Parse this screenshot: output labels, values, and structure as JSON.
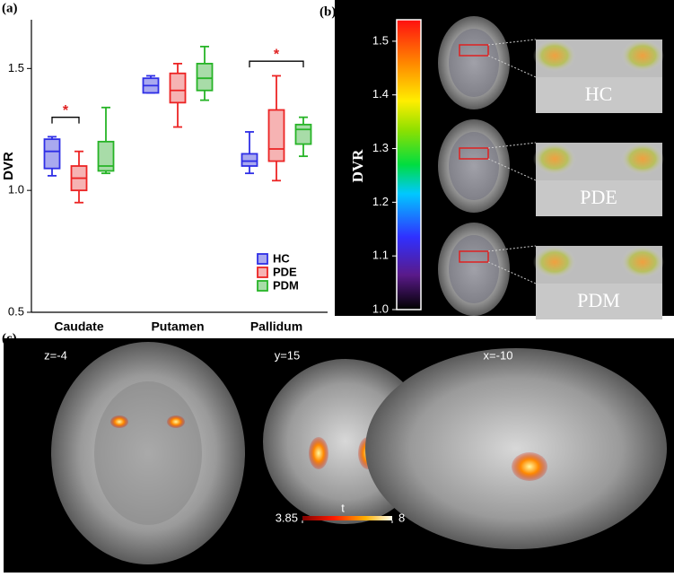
{
  "panel_labels": [
    "(a)",
    "(b)",
    "(c)"
  ],
  "chart_data": {
    "type": "box",
    "y_label": "DVR",
    "categories": [
      "Caudate",
      "Putamen",
      "Pallidum"
    ],
    "ylim": [
      0.5,
      1.7
    ],
    "yticks": [
      {
        "value": 0.5,
        "label": "0.5"
      },
      {
        "value": 1.0,
        "label": "1.0"
      },
      {
        "value": 1.5,
        "label": "1.5"
      }
    ],
    "legend": "lower right",
    "series": [
      {
        "name": "HC",
        "color": "#2f2fe6",
        "fill": "#a9a9ef",
        "values": [
          {
            "min": 1.06,
            "q1": 1.09,
            "median": 1.16,
            "q3": 1.21,
            "max": 1.22
          },
          {
            "min": 1.4,
            "q1": 1.4,
            "median": 1.43,
            "q3": 1.46,
            "max": 1.47
          },
          {
            "min": 1.07,
            "q1": 1.1,
            "median": 1.12,
            "q3": 1.15,
            "max": 1.24
          }
        ]
      },
      {
        "name": "PDE",
        "color": "#ec2424",
        "fill": "#f6b3b3",
        "values": [
          {
            "min": 0.95,
            "q1": 1.0,
            "median": 1.05,
            "q3": 1.1,
            "max": 1.16
          },
          {
            "min": 1.26,
            "q1": 1.36,
            "median": 1.41,
            "q3": 1.48,
            "max": 1.52
          },
          {
            "min": 1.04,
            "q1": 1.12,
            "median": 1.17,
            "q3": 1.33,
            "max": 1.47
          }
        ]
      },
      {
        "name": "PDM",
        "color": "#27b427",
        "fill": "#a8dca8",
        "values": [
          {
            "min": 1.07,
            "q1": 1.08,
            "median": 1.1,
            "q3": 1.2,
            "max": 1.34
          },
          {
            "min": 1.37,
            "q1": 1.41,
            "median": 1.46,
            "q3": 1.52,
            "max": 1.59
          },
          {
            "min": 1.14,
            "q1": 1.19,
            "median": 1.25,
            "q3": 1.27,
            "max": 1.3
          }
        ]
      }
    ],
    "significance": [
      {
        "text": "*",
        "category": "Caudate",
        "between": [
          "HC",
          "PDE"
        ],
        "y": 1.3
      },
      {
        "text": "*",
        "category": "Pallidum",
        "between": [
          "HC",
          "PDM"
        ],
        "y": 1.53
      }
    ]
  },
  "panel_b": {
    "colorbar": {
      "label": "DVR",
      "lim": [
        1.0,
        1.54
      ],
      "ticks": [
        {
          "value": 1.0,
          "label": "1.0"
        },
        {
          "value": 1.1,
          "label": "1.1"
        },
        {
          "value": 1.2,
          "label": "1.2"
        },
        {
          "value": 1.3,
          "label": "1.3"
        },
        {
          "value": 1.4,
          "label": "1.4"
        },
        {
          "value": 1.5,
          "label": "1.5"
        }
      ]
    },
    "groups": [
      "HC",
      "PDE",
      "PDM"
    ]
  },
  "panel_c": {
    "slices": [
      "z=-4",
      "y=15",
      "x=-10"
    ],
    "colorbar": {
      "label": "t",
      "lim": [
        3.85,
        8
      ],
      "ticks": [
        3.85,
        8
      ]
    }
  }
}
